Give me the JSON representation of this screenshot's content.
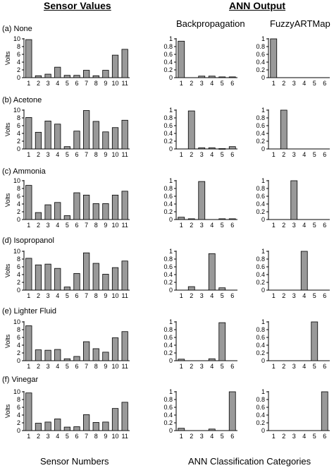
{
  "headers": {
    "sensor_values": "Sensor Values",
    "ann_output": "ANN Output",
    "backprop": "Backpropagation",
    "fuzzy": "FuzzyARTMap"
  },
  "footers": {
    "sensor_numbers": "Sensor Numbers",
    "ann_categories": "ANN Classification Categories"
  },
  "colors": {
    "bar_fill": "#999999",
    "bar_stroke": "#000000"
  },
  "rows": [
    {
      "label": "(a)  None"
    },
    {
      "label": "(b)  Acetone"
    },
    {
      "label": "(c)  Ammonia"
    },
    {
      "label": "(d)  Isopropanol"
    },
    {
      "label": "(e)  Lighter Fluid"
    },
    {
      "label": "(f)  Vinegar"
    }
  ],
  "chart_data": [
    {
      "type": "bar",
      "row": "(a) None",
      "panel": "sensor",
      "ylabel": "Volts",
      "ylim": [
        0,
        10
      ],
      "yticks": [
        0,
        2,
        4,
        6,
        8,
        10
      ],
      "categories": [
        "1",
        "2",
        "3",
        "4",
        "5",
        "6",
        "7",
        "8",
        "9",
        "10",
        "11"
      ],
      "values": [
        9.8,
        0.5,
        0.9,
        2.7,
        0.6,
        0.6,
        1.9,
        0.5,
        1.9,
        5.8,
        7.3
      ]
    },
    {
      "type": "bar",
      "row": "(a) None",
      "panel": "backprop",
      "ylim": [
        0,
        1
      ],
      "yticks": [
        0,
        0.2,
        0.4,
        0.6,
        0.8,
        1
      ],
      "categories": [
        "1",
        "2",
        "3",
        "4",
        "5",
        "6"
      ],
      "values": [
        0.94,
        0,
        0.04,
        0.04,
        0.02,
        0.02
      ]
    },
    {
      "type": "bar",
      "row": "(a) None",
      "panel": "fuzzy",
      "ylim": [
        0,
        1
      ],
      "yticks": [
        0,
        0.2,
        0.4,
        0.6,
        0.8,
        1
      ],
      "categories": [
        "1",
        "2",
        "3",
        "4",
        "5",
        "6"
      ],
      "values": [
        1,
        0,
        0,
        0,
        0,
        0
      ]
    },
    {
      "type": "bar",
      "row": "(b) Acetone",
      "panel": "sensor",
      "ylabel": "Volts",
      "ylim": [
        0,
        10
      ],
      "yticks": [
        0,
        2,
        4,
        6,
        8,
        10
      ],
      "categories": [
        "1",
        "2",
        "3",
        "4",
        "5",
        "6",
        "7",
        "8",
        "9",
        "10",
        "11"
      ],
      "values": [
        8.1,
        4.3,
        7.2,
        6.4,
        0.6,
        4.6,
        9.9,
        7.1,
        4.4,
        5.5,
        7.4
      ]
    },
    {
      "type": "bar",
      "row": "(b) Acetone",
      "panel": "backprop",
      "ylim": [
        0,
        1
      ],
      "yticks": [
        0,
        0.2,
        0.4,
        0.6,
        0.8,
        1
      ],
      "categories": [
        "1",
        "2",
        "3",
        "4",
        "5",
        "6"
      ],
      "values": [
        0,
        0.98,
        0.03,
        0.03,
        0.01,
        0.06
      ]
    },
    {
      "type": "bar",
      "row": "(b) Acetone",
      "panel": "fuzzy",
      "ylim": [
        0,
        1
      ],
      "yticks": [
        0,
        0.2,
        0.4,
        0.6,
        0.8,
        1
      ],
      "categories": [
        "1",
        "2",
        "3",
        "4",
        "5",
        "6"
      ],
      "values": [
        0,
        1,
        0,
        0,
        0,
        0
      ]
    },
    {
      "type": "bar",
      "row": "(c) Ammonia",
      "panel": "sensor",
      "ylabel": "Volts",
      "ylim": [
        0,
        10
      ],
      "yticks": [
        0,
        2,
        4,
        6,
        8,
        10
      ],
      "categories": [
        "1",
        "2",
        "3",
        "4",
        "5",
        "6",
        "7",
        "8",
        "9",
        "10",
        "11"
      ],
      "values": [
        8.8,
        1.8,
        3.8,
        4.4,
        1.0,
        6.9,
        6.3,
        4.1,
        4.1,
        6.3,
        7.3
      ]
    },
    {
      "type": "bar",
      "row": "(c) Ammonia",
      "panel": "backprop",
      "ylim": [
        0,
        1
      ],
      "yticks": [
        0,
        0.2,
        0.4,
        0.6,
        0.8,
        1
      ],
      "categories": [
        "1",
        "2",
        "3",
        "4",
        "5",
        "6"
      ],
      "values": [
        0.06,
        0.02,
        0.98,
        0,
        0.02,
        0.02
      ]
    },
    {
      "type": "bar",
      "row": "(c) Ammonia",
      "panel": "fuzzy",
      "ylim": [
        0,
        1
      ],
      "yticks": [
        0,
        0.2,
        0.4,
        0.6,
        0.8,
        1
      ],
      "categories": [
        "1",
        "2",
        "3",
        "4",
        "5",
        "6"
      ],
      "values": [
        0,
        0,
        1,
        0,
        0,
        0
      ]
    },
    {
      "type": "bar",
      "row": "(d) Isopropanol",
      "panel": "sensor",
      "ylabel": "Volts",
      "ylim": [
        0,
        10
      ],
      "yticks": [
        0,
        2,
        4,
        6,
        8,
        10
      ],
      "categories": [
        "1",
        "2",
        "3",
        "4",
        "5",
        "6",
        "7",
        "8",
        "9",
        "10",
        "11"
      ],
      "values": [
        8.2,
        6.5,
        6.7,
        5.6,
        0.8,
        4.3,
        9.6,
        6.9,
        4.1,
        5.8,
        7.5
      ]
    },
    {
      "type": "bar",
      "row": "(d) Isopropanol",
      "panel": "backprop",
      "ylim": [
        0,
        1
      ],
      "yticks": [
        0,
        0.2,
        0.4,
        0.6,
        0.8,
        1
      ],
      "categories": [
        "1",
        "2",
        "3",
        "4",
        "5",
        "6"
      ],
      "values": [
        0,
        0.09,
        0,
        0.94,
        0.06,
        0
      ]
    },
    {
      "type": "bar",
      "row": "(d) Isopropanol",
      "panel": "fuzzy",
      "ylim": [
        0,
        1
      ],
      "yticks": [
        0,
        0.2,
        0.4,
        0.6,
        0.8,
        1
      ],
      "categories": [
        "1",
        "2",
        "3",
        "4",
        "5",
        "6"
      ],
      "values": [
        0,
        0,
        0,
        1,
        0,
        0
      ]
    },
    {
      "type": "bar",
      "row": "(e) Lighter Fluid",
      "panel": "sensor",
      "ylabel": "Volts",
      "ylim": [
        0,
        10
      ],
      "yticks": [
        0,
        2,
        4,
        6,
        8,
        10
      ],
      "categories": [
        "1",
        "2",
        "3",
        "4",
        "5",
        "6",
        "7",
        "8",
        "9",
        "10",
        "11"
      ],
      "values": [
        9.0,
        2.8,
        2.7,
        2.9,
        0.5,
        1.1,
        4.9,
        3.1,
        2.2,
        5.9,
        7.5
      ]
    },
    {
      "type": "bar",
      "row": "(e) Lighter Fluid",
      "panel": "backprop",
      "ylim": [
        0,
        1
      ],
      "yticks": [
        0,
        0.2,
        0.4,
        0.6,
        0.8,
        1
      ],
      "categories": [
        "1",
        "2",
        "3",
        "4",
        "5",
        "6"
      ],
      "values": [
        0.04,
        0,
        0,
        0.05,
        0.98,
        0
      ]
    },
    {
      "type": "bar",
      "row": "(e) Lighter Fluid",
      "panel": "fuzzy",
      "ylim": [
        0,
        1
      ],
      "yticks": [
        0,
        0.2,
        0.4,
        0.6,
        0.8,
        1
      ],
      "categories": [
        "1",
        "2",
        "3",
        "4",
        "5",
        "6"
      ],
      "values": [
        0,
        0,
        0,
        0,
        1,
        0
      ]
    },
    {
      "type": "bar",
      "row": "(f) Vinegar",
      "panel": "sensor",
      "ylabel": "Volts",
      "ylim": [
        0,
        10
      ],
      "yticks": [
        0,
        2,
        4,
        6,
        8,
        10
      ],
      "categories": [
        "1",
        "2",
        "3",
        "4",
        "5",
        "6",
        "7",
        "8",
        "9",
        "10",
        "11"
      ],
      "values": [
        9.7,
        1.9,
        2.2,
        3.0,
        0.9,
        1.0,
        4.1,
        2.1,
        2.2,
        5.7,
        7.3
      ]
    },
    {
      "type": "bar",
      "row": "(f) Vinegar",
      "panel": "backprop",
      "ylim": [
        0,
        1
      ],
      "yticks": [
        0,
        0.2,
        0.4,
        0.6,
        0.8,
        1
      ],
      "categories": [
        "1",
        "2",
        "3",
        "4",
        "5",
        "6"
      ],
      "values": [
        0.06,
        0,
        0,
        0.04,
        0,
        1
      ]
    },
    {
      "type": "bar",
      "row": "(f) Vinegar",
      "panel": "fuzzy",
      "ylim": [
        0,
        1
      ],
      "yticks": [
        0,
        0.2,
        0.4,
        0.6,
        0.8,
        1
      ],
      "categories": [
        "1",
        "2",
        "3",
        "4",
        "5",
        "6"
      ],
      "values": [
        0,
        0,
        0,
        0,
        0,
        1
      ]
    }
  ]
}
